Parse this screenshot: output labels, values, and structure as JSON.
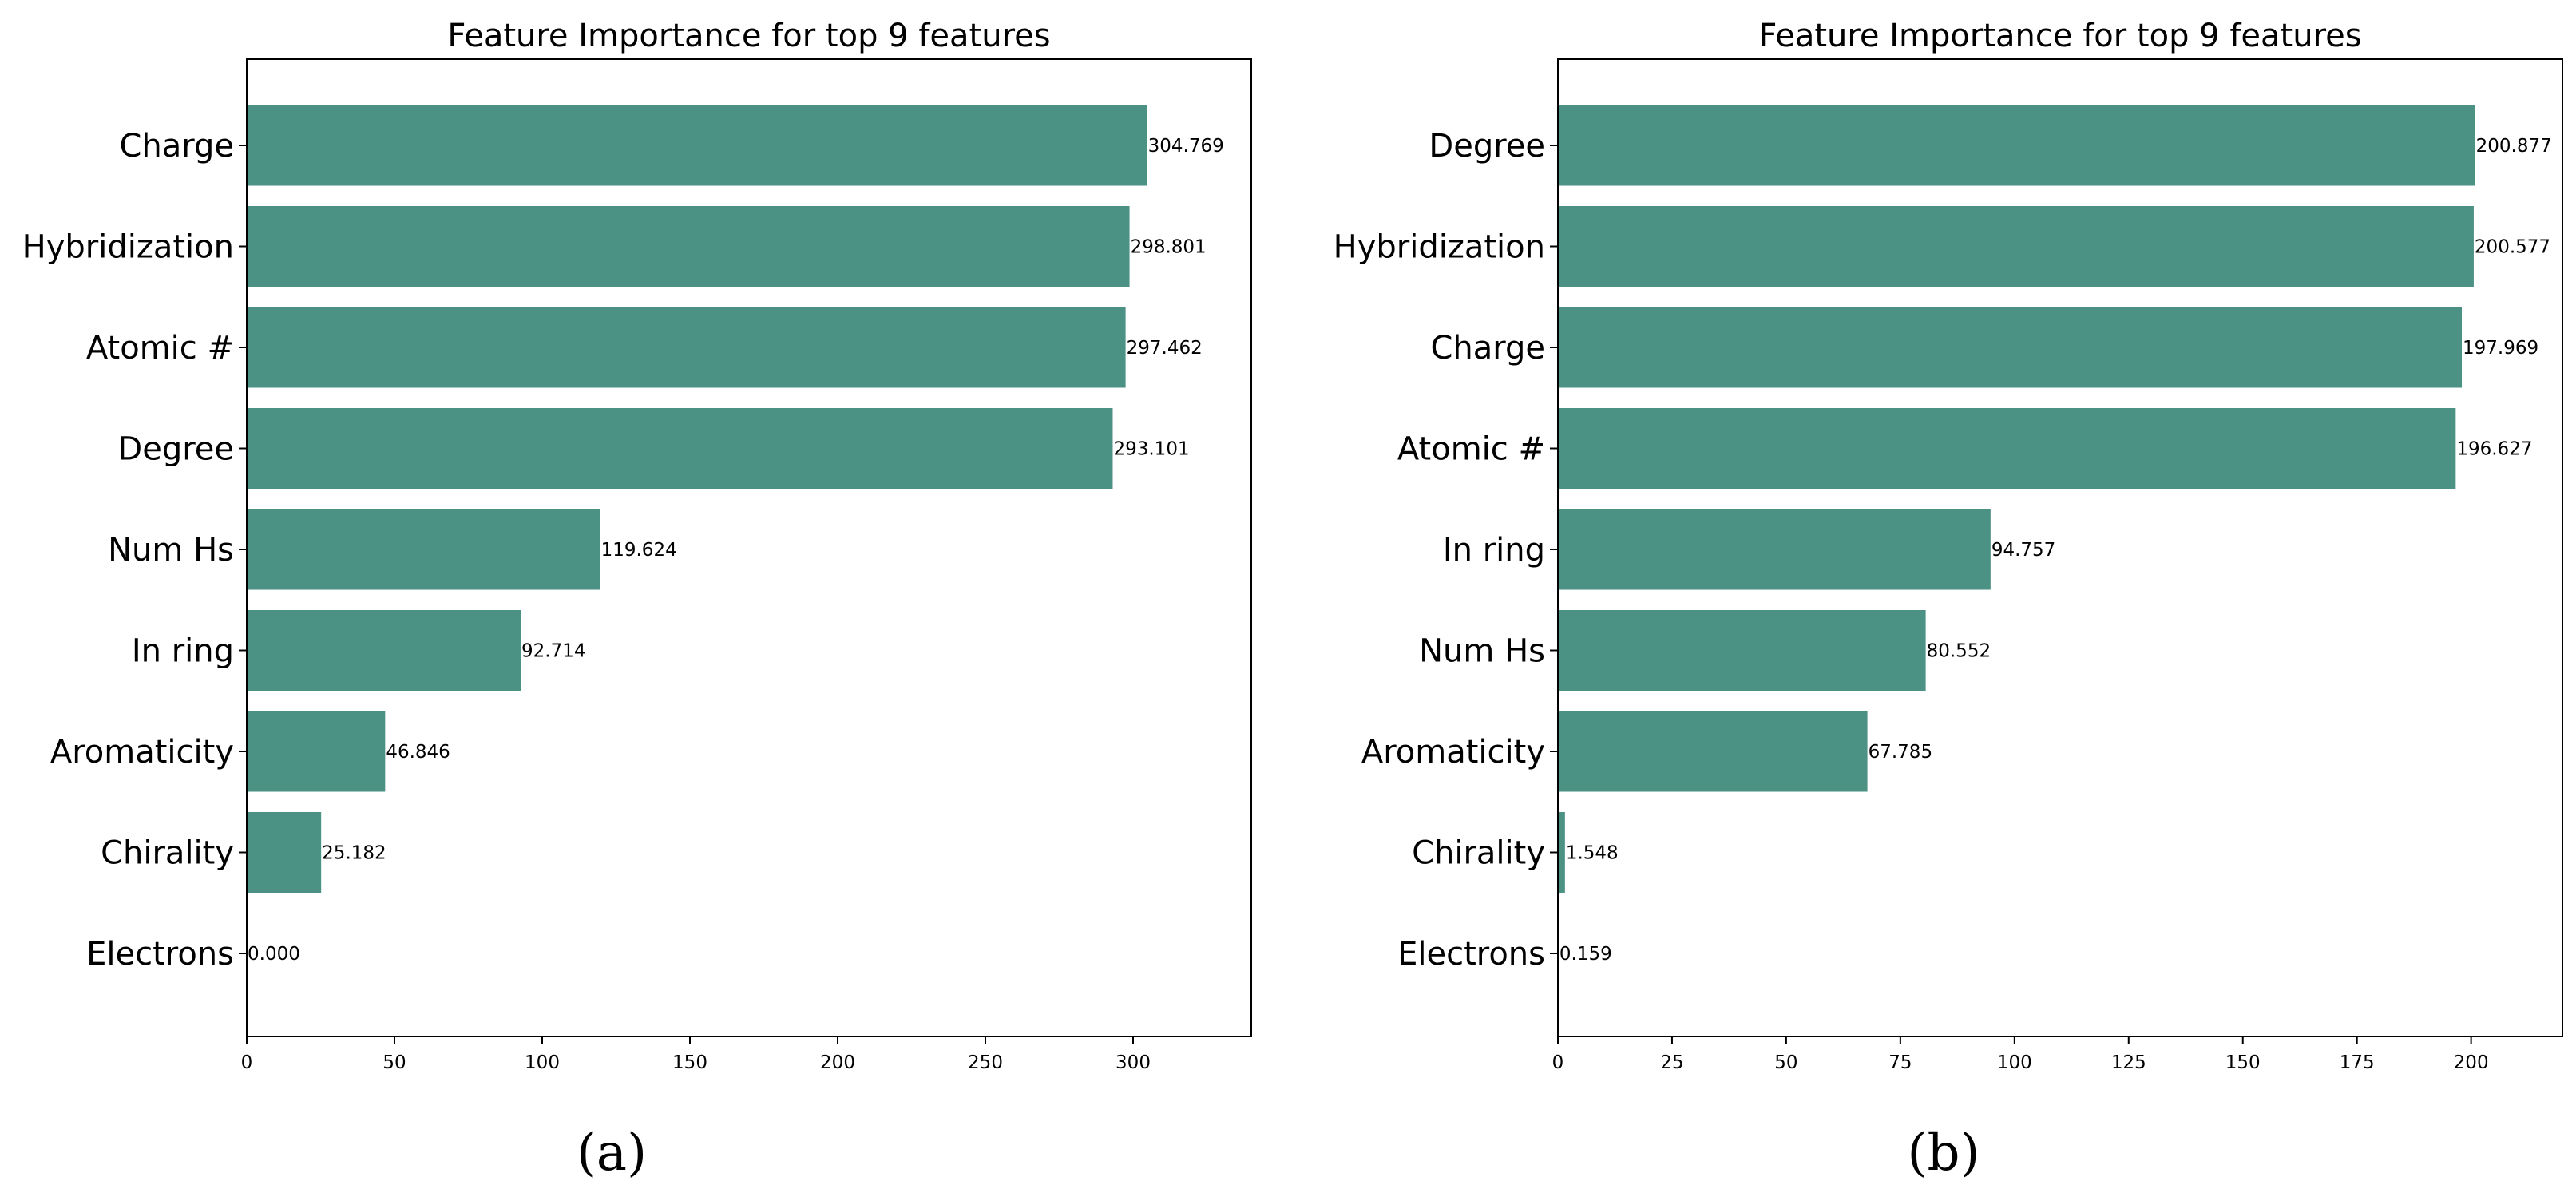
{
  "colors": {
    "bar": "#4b9184",
    "axis": "#000000",
    "background": "#ffffff"
  },
  "chart_data": [
    {
      "type": "bar",
      "orientation": "horizontal",
      "panel_label": "(a)",
      "title": "Feature Importance for top 9 features",
      "categories": [
        "Charge",
        "Hybridization",
        "Atomic #",
        "Degree",
        "Num Hs",
        "In ring",
        "Aromaticity",
        "Chirality",
        "Electrons"
      ],
      "values": [
        304.769,
        298.801,
        297.462,
        293.101,
        119.624,
        92.714,
        46.846,
        25.182,
        0.0
      ],
      "value_labels": [
        "304.769",
        "298.801",
        "297.462",
        "293.101",
        "119.624",
        "92.714",
        "46.846",
        "25.182",
        "0.000"
      ],
      "xlim": [
        0,
        340
      ],
      "x_ticks": [
        0,
        50,
        100,
        150,
        200,
        250,
        300
      ],
      "xlabel": "",
      "ylabel": "",
      "grid": false,
      "legend": "none"
    },
    {
      "type": "bar",
      "orientation": "horizontal",
      "panel_label": "(b)",
      "title": "Feature Importance for top 9 features",
      "categories": [
        "Degree",
        "Hybridization",
        "Charge",
        "Atomic #",
        "In ring",
        "Num Hs",
        "Aromaticity",
        "Chirality",
        "Electrons"
      ],
      "values": [
        200.877,
        200.577,
        197.969,
        196.627,
        94.757,
        80.552,
        67.785,
        1.548,
        0.159
      ],
      "value_labels": [
        "200.877",
        "200.577",
        "197.969",
        "196.627",
        "94.757",
        "80.552",
        "67.785",
        "1.548",
        "0.159"
      ],
      "xlim": [
        0,
        220
      ],
      "x_ticks": [
        0,
        25,
        50,
        75,
        100,
        125,
        150,
        175,
        200
      ],
      "xlabel": "",
      "ylabel": "",
      "grid": false,
      "legend": "none"
    }
  ]
}
